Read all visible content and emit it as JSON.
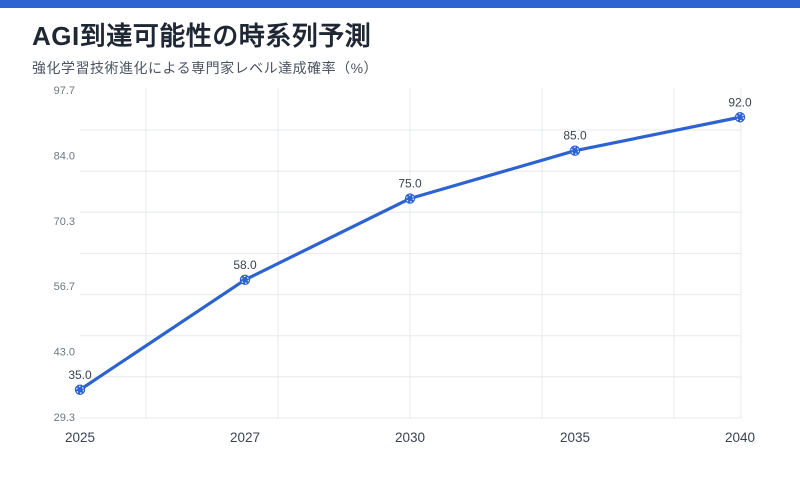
{
  "theme": {
    "accent_bar_color": "#2e64d2",
    "line_color": "#2d63d1",
    "grid_color": "#e6e8eb",
    "title_color": "#1e2733",
    "subtitle_color": "#4a5462",
    "y_tick_color": "#6e7681",
    "x_tick_color": "#3a4350",
    "point_label_color": "#3a4350",
    "background_color": "#ffffff"
  },
  "header": {
    "title": "AGI到達可能性の時系列予測",
    "subtitle": "強化学習技術進化による専門家レベル達成確率（%）"
  },
  "chart_data": {
    "type": "line",
    "title": "AGI到達可能性の時系列予測",
    "subtitle": "強化学習技術進化による専門家レベル達成確率（%）",
    "categories": [
      "2025",
      "2027",
      "2030",
      "2035",
      "2040"
    ],
    "values": [
      35.0,
      58.0,
      75.0,
      85.0,
      92.0
    ],
    "point_labels": [
      "35.0",
      "58.0",
      "75.0",
      "85.0",
      "92.0"
    ],
    "y_tick_labels": [
      "97.7",
      "84.0",
      "70.3",
      "56.7",
      "43.0",
      "29.3"
    ],
    "ylim": [
      29.3,
      97.7
    ],
    "xlabel": "",
    "ylabel": "",
    "grid": true,
    "legend_position": "none",
    "marker": "circle"
  }
}
